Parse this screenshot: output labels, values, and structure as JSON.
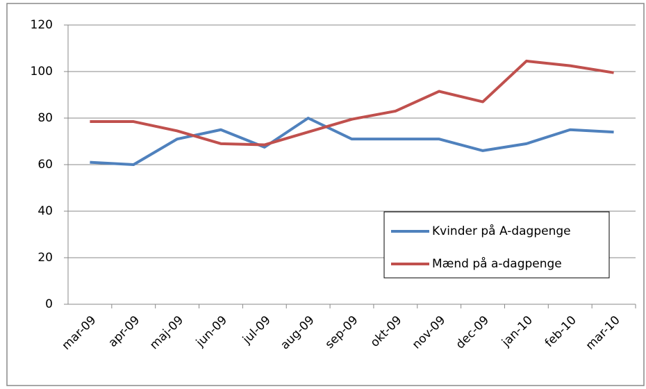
{
  "chart_data": {
    "type": "line",
    "categories": [
      "mar-09",
      "apr-09",
      "maj-09",
      "jun-09",
      "jul-09",
      "aug-09",
      "sep-09",
      "okt-09",
      "nov-09",
      "dec-09",
      "jan-10",
      "feb-10",
      "mar-10"
    ],
    "series": [
      {
        "name": "Kvinder på A-dagpenge",
        "color": "#4f81bd",
        "values": [
          61,
          60,
          71,
          75,
          67.5,
          80,
          71,
          71,
          71,
          66,
          69,
          75,
          74
        ]
      },
      {
        "name": "Mænd på a-dagpenge",
        "color": "#c0504d",
        "values": [
          78.5,
          78.5,
          74.5,
          69,
          68.5,
          74,
          79.5,
          83,
          91.5,
          87,
          104.5,
          102.5,
          99.5
        ]
      }
    ],
    "ylim": [
      0,
      120
    ],
    "yticks": [
      0,
      20,
      40,
      60,
      80,
      100,
      120
    ],
    "grid": true,
    "legend": "right"
  }
}
